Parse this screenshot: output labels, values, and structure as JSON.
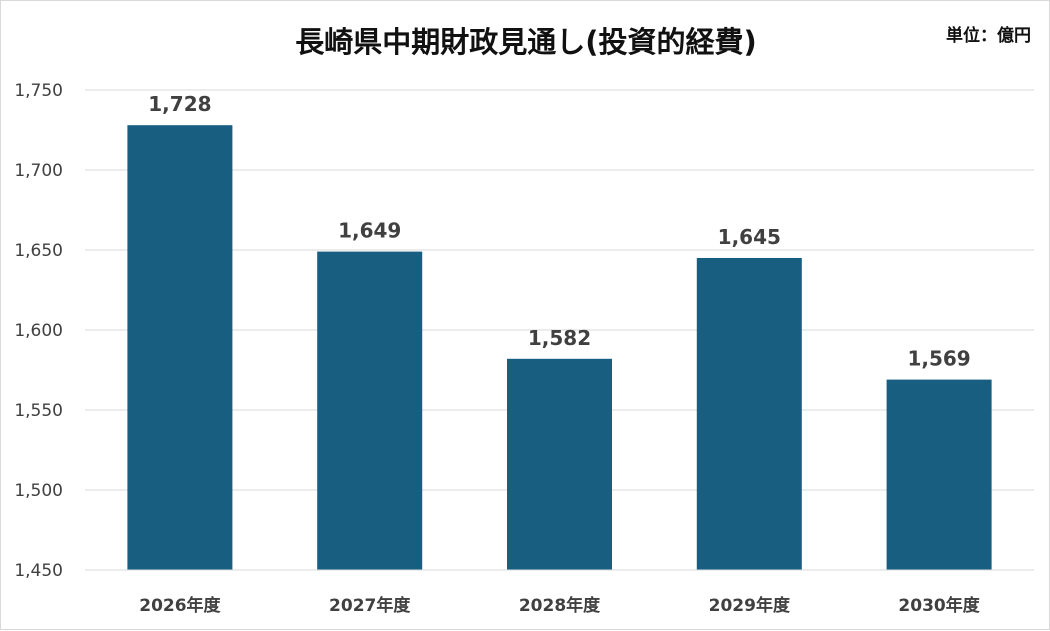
{
  "chart_data": {
    "type": "bar",
    "title": "長崎県中期財政見通し(投資的経費)",
    "unit_label": "単位：億円",
    "categories": [
      "2026年度",
      "2027年度",
      "2028年度",
      "2029年度",
      "2030年度"
    ],
    "values": [
      1728,
      1649,
      1582,
      1645,
      1569
    ],
    "data_labels": [
      "1,728",
      "1,649",
      "1,582",
      "1,645",
      "1,569"
    ],
    "yticks": [
      "1,450",
      "1,500",
      "1,550",
      "1,600",
      "1,650",
      "1,700",
      "1,750"
    ],
    "ylim": [
      1450,
      1750
    ],
    "xlabel": "",
    "ylabel": "",
    "grid": true,
    "legend": "none",
    "colors": {
      "bar": "#175e81",
      "grid": "#d9d9d9",
      "text": "#404040"
    }
  }
}
